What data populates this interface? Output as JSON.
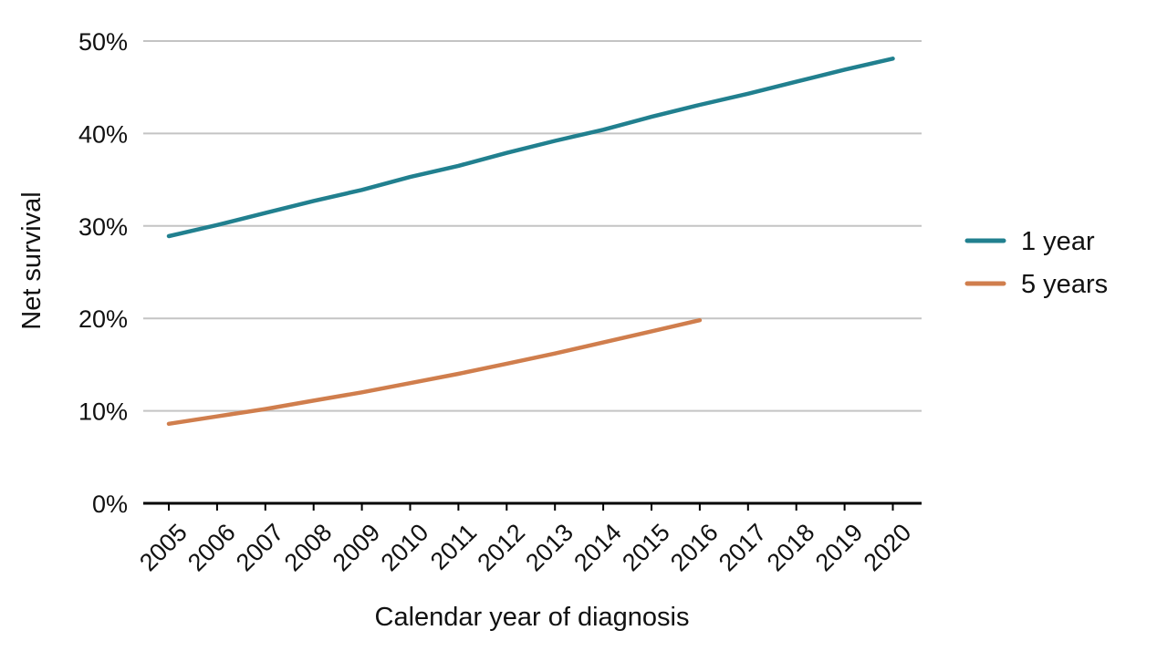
{
  "chart_data": {
    "type": "line",
    "title": "",
    "xlabel": "Calendar year of diagnosis",
    "ylabel": "Net survival",
    "x": [
      "2005",
      "2006",
      "2007",
      "2008",
      "2009",
      "2010",
      "2011",
      "2012",
      "2013",
      "2014",
      "2015",
      "2016",
      "2017",
      "2018",
      "2019",
      "2020"
    ],
    "ylim": [
      0,
      50
    ],
    "y_ticks": [
      {
        "value": 0,
        "label": "0%"
      },
      {
        "value": 10,
        "label": "10%"
      },
      {
        "value": 20,
        "label": "20%"
      },
      {
        "value": 30,
        "label": "30%"
      },
      {
        "value": 40,
        "label": "40%"
      },
      {
        "value": 50,
        "label": "50%"
      }
    ],
    "grid": true,
    "legend_position": "right",
    "series": [
      {
        "name": "1 year",
        "color": "#21808f",
        "values": [
          28.9,
          30.1,
          31.4,
          32.7,
          33.9,
          35.3,
          36.5,
          37.9,
          39.2,
          40.4,
          41.8,
          43.1,
          44.3,
          45.6,
          46.9,
          48.1
        ]
      },
      {
        "name": "5 years",
        "color": "#d07e4d",
        "values": [
          8.6,
          9.4,
          10.2,
          11.1,
          12.0,
          13.0,
          14.0,
          15.1,
          16.2,
          17.4,
          18.6,
          19.8,
          null,
          null,
          null,
          null
        ]
      }
    ]
  }
}
